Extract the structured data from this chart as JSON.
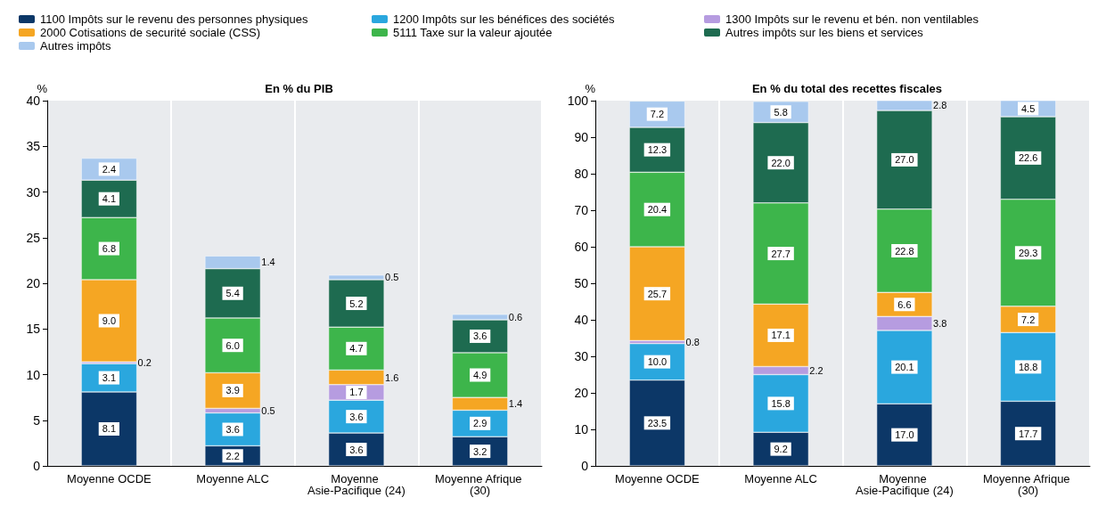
{
  "chart_data": [
    {
      "type": "bar",
      "title": "En % du PIB",
      "ylabel": "%",
      "stacked": true,
      "grid": "x",
      "legend": "top",
      "categories": [
        "Moyenne OCDE",
        "Moyenne ALC",
        "Moyenne Asie-Pacifique (24)",
        "Moyenne Afrique (30)"
      ],
      "ylim": [
        0,
        40
      ],
      "yticks": [
        0,
        5,
        10,
        15,
        20,
        25,
        30,
        35,
        40
      ],
      "series": [
        {
          "name": "1100 Impôts sur le revenu des personnes physiques",
          "color": "#0c3767",
          "values": [
            8.1,
            2.2,
            3.6,
            3.2
          ],
          "value_labels": [
            "8.1",
            "2.2",
            "3.6",
            "3.2"
          ]
        },
        {
          "name": "1200 Impôts sur les bénéfices des sociétés",
          "color": "#2aa7de",
          "values": [
            3.1,
            3.6,
            3.6,
            2.9
          ],
          "value_labels": [
            "3.1",
            "3.6",
            "3.6",
            "2.9"
          ]
        },
        {
          "name": "1300 Impôts sur le revenu et bén. non ventilables",
          "color": "#b69ce0",
          "values": [
            0.2,
            0.5,
            1.7,
            null
          ],
          "value_labels": [
            "0.2",
            "0.5",
            "1.7",
            null
          ]
        },
        {
          "name": "2000 Cotisations de securité sociale (CSS)",
          "color": "#f5a623",
          "values": [
            9.0,
            3.9,
            1.6,
            1.4
          ],
          "value_labels": [
            "9.0",
            "3.9",
            "1.6",
            "1.4"
          ]
        },
        {
          "name": "5111 Taxe sur la valeur ajoutée",
          "color": "#3db54b",
          "values": [
            6.8,
            6.0,
            4.7,
            4.9
          ],
          "value_labels": [
            "6.8",
            "6.0",
            "4.7",
            "4.9"
          ]
        },
        {
          "name": "Autres impôts sur les biens et services",
          "color": "#1e6b50",
          "values": [
            4.1,
            5.4,
            5.2,
            3.6
          ],
          "value_labels": [
            "4.1",
            "5.4",
            "5.2",
            "3.6"
          ]
        },
        {
          "name": "Autres impôts",
          "color": "#a9c9ee",
          "values": [
            2.4,
            1.4,
            0.5,
            0.6
          ],
          "value_labels": [
            "2.4",
            "1.4",
            "0.5",
            "0.6"
          ]
        }
      ]
    },
    {
      "type": "bar",
      "title": "En % du total des recettes fiscales",
      "ylabel": "%",
      "stacked": true,
      "grid": "x",
      "categories": [
        "Moyenne OCDE",
        "Moyenne ALC",
        "Moyenne Asie-Pacifique (24)",
        "Moyenne Afrique (30)"
      ],
      "ylim": [
        0,
        100
      ],
      "yticks": [
        0,
        10,
        20,
        30,
        40,
        50,
        60,
        70,
        80,
        90,
        100
      ],
      "series": [
        {
          "color": "#0c3767",
          "values": [
            23.5,
            9.2,
            17.0,
            17.7
          ],
          "value_labels": [
            "23.5",
            "9.2",
            "17.0",
            "17.7"
          ]
        },
        {
          "color": "#2aa7de",
          "values": [
            10.0,
            15.8,
            20.1,
            18.8
          ],
          "value_labels": [
            "10.0",
            "15.8",
            "20.1",
            "18.8"
          ]
        },
        {
          "color": "#b69ce0",
          "values": [
            0.8,
            2.2,
            3.8,
            null
          ],
          "value_labels": [
            "0.8",
            "2.2",
            "3.8",
            null
          ]
        },
        {
          "color": "#f5a623",
          "values": [
            25.7,
            17.1,
            6.6,
            7.2
          ],
          "value_labels": [
            "25.7",
            "17.1",
            "6.6",
            "7.2"
          ]
        },
        {
          "color": "#3db54b",
          "values": [
            20.4,
            27.7,
            22.8,
            29.3
          ],
          "value_labels": [
            "20.4",
            "27.7",
            "22.8",
            "29.3"
          ]
        },
        {
          "color": "#1e6b50",
          "values": [
            12.3,
            22.0,
            27.0,
            22.6
          ],
          "value_labels": [
            "12.3",
            "22.0",
            "27.0",
            "22.6"
          ]
        },
        {
          "color": "#a9c9ee",
          "values": [
            7.2,
            5.8,
            2.8,
            4.5
          ],
          "value_labels": [
            "7.2",
            "5.8",
            "2.8",
            "4.5"
          ]
        }
      ]
    }
  ]
}
